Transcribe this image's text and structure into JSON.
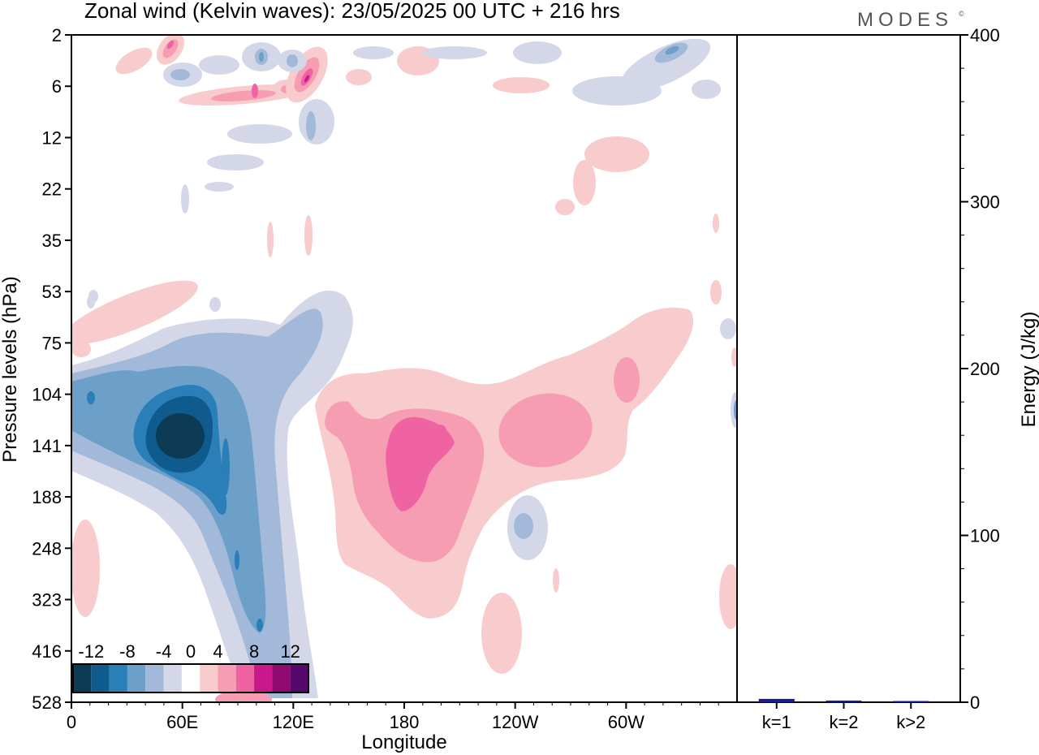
{
  "title": "Zonal wind (Kelvin waves):  23/05/2025  00 UTC  + 216 hrs",
  "brand": "MODES",
  "brand_mark": "©",
  "chart_data": [
    {
      "type": "heatmap",
      "title": "Zonal wind (Kelvin waves):  23/05/2025  00 UTC  + 216 hrs",
      "xlabel": "Longitude",
      "ylabel": "Pressure levels (hPa)",
      "x_ticks": [
        "0",
        "60E",
        "120E",
        "180",
        "120W",
        "60W"
      ],
      "y_ticks": [
        "2",
        "6",
        "12",
        "22",
        "35",
        "53",
        "75",
        "104",
        "141",
        "188",
        "248",
        "323",
        "416",
        "528"
      ],
      "colorbar": {
        "tick_labels": [
          "-12",
          "-8",
          "-4",
          "0",
          "4",
          "8",
          "12"
        ],
        "levels": [
          -14,
          -12,
          -10,
          -8,
          -6,
          -4,
          -2,
          2,
          4,
          6,
          8,
          10,
          12,
          14
        ],
        "colors": [
          "#0d3a55",
          "#0f5b8e",
          "#2a7fb8",
          "#6da0c8",
          "#a3b9d9",
          "#d3d7e8",
          "#ffffff",
          "#f8cccc",
          "#f79db3",
          "#ef63a2",
          "#c8188b",
          "#8e0a70",
          "#56096c"
        ]
      },
      "features": [
        {
          "kind": "negative",
          "level": -14,
          "lon": 60,
          "level_idx": 8.0
        },
        {
          "kind": "negative",
          "level": -8,
          "lon": 85,
          "level_idx": 9.5
        },
        {
          "kind": "positive",
          "level": 6,
          "lon": 180,
          "level_idx": 8.8
        },
        {
          "kind": "positive",
          "level": 4,
          "lon": 240,
          "level_idx": 7.8
        },
        {
          "kind": "positive",
          "level": 8,
          "lon": 50,
          "level_idx": 0.4
        },
        {
          "kind": "positive",
          "level": 8,
          "lon": 128,
          "level_idx": 1.0
        }
      ]
    },
    {
      "type": "bar",
      "categories": [
        "k=1",
        "k=2",
        "k>2"
      ],
      "values": [
        2,
        1,
        0.5
      ],
      "ylabel": "Energy (J/kg)",
      "ylim": [
        0,
        400
      ],
      "y_ticks": [
        "0",
        "100",
        "200",
        "300",
        "400"
      ],
      "bar_color": "#1a1a8c"
    }
  ]
}
